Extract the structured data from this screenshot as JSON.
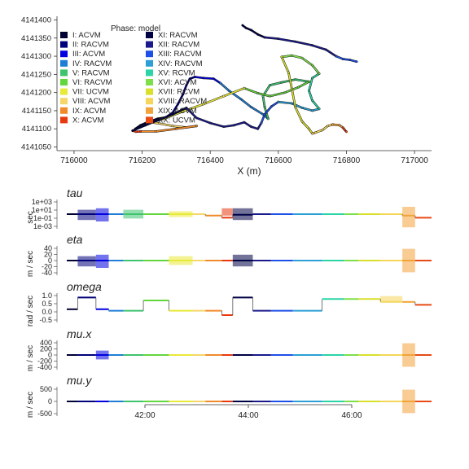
{
  "chart_data": [
    {
      "type": "scatter",
      "xlabel": "X (m)",
      "ylabel": "",
      "xlim": [
        715950,
        717050
      ],
      "ylim": [
        4141040,
        4141410
      ],
      "x_ticks": [
        "716000",
        "716200",
        "716400",
        "716600",
        "716800",
        "717000"
      ],
      "x_tick_values": [
        716000,
        716200,
        716400,
        716600,
        716800,
        717000
      ],
      "y_ticks": [
        "4141050",
        "4141100",
        "4141150",
        "4141200",
        "4141250",
        "4141300",
        "4141350",
        "4141400"
      ],
      "y_tick_values": [
        4141050,
        4141100,
        4141150,
        4141200,
        4141250,
        4141300,
        4141350,
        4141400
      ],
      "legend_title": "Phase: model",
      "legend_placement": "top-left",
      "phases": [
        {
          "label": "I: ACVM",
          "color": "#000033"
        },
        {
          "label": "II: RACVM",
          "color": "#00007a"
        },
        {
          "label": "III: ACVM",
          "color": "#0000e0"
        },
        {
          "label": "IV: RACVM",
          "color": "#1f7fd6"
        },
        {
          "label": "V: RACVM",
          "color": "#3ec36f"
        },
        {
          "label": "VI: RACVM",
          "color": "#63d63e"
        },
        {
          "label": "VII: UCVM",
          "color": "#e9e93a"
        },
        {
          "label": "VIII: ACVM",
          "color": "#f5d66a"
        },
        {
          "label": "IX: ACVM",
          "color": "#f08a2a"
        },
        {
          "label": "X: ACVM",
          "color": "#e8390e"
        },
        {
          "label": "XI: RACVM",
          "color": "#000045"
        },
        {
          "label": "XII: RACVM",
          "color": "#1a1a8c"
        },
        {
          "label": "XIII: RACVM",
          "color": "#1e4fe6"
        },
        {
          "label": "XIV: RACVM",
          "color": "#2b9fd6"
        },
        {
          "label": "XV: RCVM",
          "color": "#2ad4a6"
        },
        {
          "label": "XVI: ACVM",
          "color": "#7de04a"
        },
        {
          "label": "XVII: RCVM",
          "color": "#d8e02c"
        },
        {
          "label": "XVIII: RACVM",
          "color": "#f5d65a"
        },
        {
          "label": "XIX: ACVM",
          "color": "#f2a33a"
        },
        {
          "label": "XX: UCVM",
          "color": "#e84a14"
        }
      ]
    },
    {
      "type": "line",
      "time_axis_ticks": [
        "42:00",
        "44:00",
        "46:00"
      ],
      "panels": [
        {
          "title": "tau",
          "unit": "sec",
          "ticks": [
            "1e+03",
            "1e+01",
            "1e-01",
            "1e-03"
          ]
        },
        {
          "title": "eta",
          "unit": "m / sec",
          "ticks": [
            "40",
            "20",
            "0",
            "-20",
            "-40"
          ]
        },
        {
          "title": "omega",
          "unit": "rad / sec",
          "ticks": [
            "1.0",
            "0.5",
            "0.0",
            "-0.5"
          ]
        },
        {
          "title": "mu.x",
          "unit": "m / sec",
          "ticks": [
            "400",
            "200",
            "0",
            "-200",
            "-400"
          ]
        },
        {
          "title": "mu.y",
          "unit": "m / sec",
          "ticks": [
            "500",
            "0",
            "-500"
          ]
        }
      ]
    }
  ]
}
